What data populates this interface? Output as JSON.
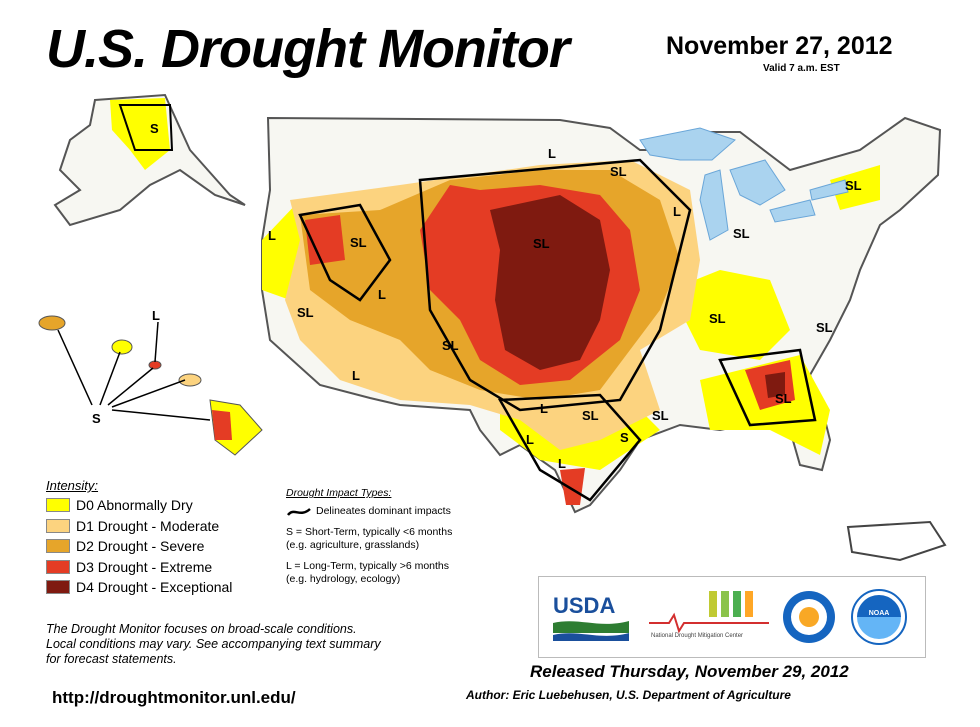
{
  "header": {
    "title": "U.S. Drought Monitor",
    "date": "November 27, 2012",
    "valid": "Valid 7 a.m. EST"
  },
  "colors": {
    "D0": "#ffff00",
    "D1": "#fcd37f",
    "D2": "#e6a52a",
    "D3": "#e43c24",
    "D4": "#7f1a10",
    "water": "#aad3ef",
    "boundary": "#000000"
  },
  "legend": {
    "heading": "Intensity:",
    "items": [
      {
        "code": "D0",
        "label": "D0 Abnormally Dry"
      },
      {
        "code": "D1",
        "label": "D1 Drought - Moderate"
      },
      {
        "code": "D2",
        "label": "D2 Drought - Severe"
      },
      {
        "code": "D3",
        "label": "D3 Drought - Extreme"
      },
      {
        "code": "D4",
        "label": "D4 Drought - Exceptional"
      }
    ]
  },
  "impact_types": {
    "heading": "Drought Impact Types:",
    "delineates": "Delineates dominant impacts",
    "short_term_line1": "S = Short-Term, typically <6 months",
    "short_term_line2": "(e.g. agriculture, grasslands)",
    "long_term_line1": "L = Long-Term, typically >6 months",
    "long_term_line2": "(e.g. hydrology, ecology)"
  },
  "note": {
    "line1": "The Drought Monitor focuses on broad-scale conditions.",
    "line2": "Local conditions may vary. See accompanying text summary",
    "line3": "for forecast statements."
  },
  "footer": {
    "released": "Released Thursday, November 29, 2012",
    "author": "Author: Eric Luebehusen, U.S. Department of Agriculture",
    "url": "http://droughtmonitor.unl.edu/"
  },
  "logos": {
    "usda": "USDA",
    "ndmc": "National Drought Mitigation Center",
    "noaa": "NOAA"
  },
  "map_labels": {
    "alaska": "S",
    "hawaii_l": "L",
    "hawaii_s": "S",
    "wa": "L",
    "nw_or": "SL",
    "nv": "L",
    "ca": "SL",
    "az": "L",
    "nm": "SL",
    "mn_n": "L",
    "mn_e": "SL",
    "plains": "SL",
    "wi": "L",
    "mi_s": "SL",
    "ne_us": "SL",
    "ohio": "SL",
    "va": "SL",
    "tx_l1": "L",
    "tx_sl": "SL",
    "tx_l2": "L",
    "tx_sl2": "SL",
    "la_s": "S",
    "la_sl": "SL",
    "tx_l3": "L",
    "se_sl": "SL"
  }
}
